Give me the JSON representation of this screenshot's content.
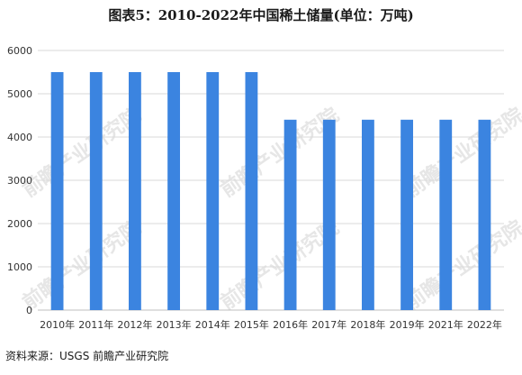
{
  "title": "图表5：2010-2022年中国稀土储量(单位：万吨)",
  "source": {
    "label": "资料来源：",
    "text": "USGS 前瞻产业研究院"
  },
  "watermark": "前瞻产业研究院",
  "colors": {
    "bar": "#3b84e0",
    "grid": "#d9d9d9",
    "axis": "#bfbfbf",
    "text": "#333333"
  },
  "chart_data": {
    "type": "bar",
    "title": "图表5：2010-2022年中国稀土储量(单位：万吨)",
    "xlabel": "",
    "ylabel": "",
    "categories": [
      "2010年",
      "2011年",
      "2012年",
      "2013年",
      "2014年",
      "2015年",
      "2016年",
      "2017年",
      "2018年",
      "2019年",
      "2021年",
      "2022年"
    ],
    "values": [
      5500,
      5500,
      5500,
      5500,
      5500,
      5500,
      4400,
      4400,
      4400,
      4400,
      4400,
      4400
    ],
    "ylim": [
      0,
      6000
    ],
    "yticks": [
      0,
      1000,
      2000,
      3000,
      4000,
      5000,
      6000
    ],
    "grid": true,
    "legend": "none"
  }
}
